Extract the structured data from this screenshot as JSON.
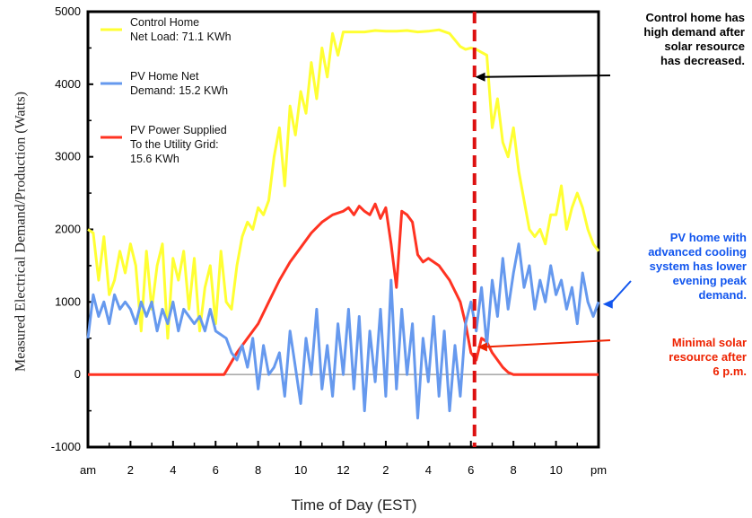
{
  "chart_data": {
    "type": "line",
    "xlabel": "Time of Day (EST)",
    "ylabel": "Measured Electrical Demand/Production (Watts)",
    "ylim": [
      -1000,
      5000
    ],
    "xlim": [
      0,
      24
    ],
    "yticks": [
      "5000",
      "4000",
      "3000",
      "2000",
      "1000",
      "0",
      "-1000"
    ],
    "xticks": [
      "am",
      "2",
      "4",
      "6",
      "8",
      "10",
      "12",
      "2",
      "4",
      "6",
      "8",
      "10",
      "pm"
    ],
    "grid": false,
    "legend_position": "top-left",
    "legend": [
      {
        "lines": [
          "Control Home",
          "Net Load: 71.1 KWh"
        ],
        "color": "#ffff33"
      },
      {
        "lines": [
          "PV Home Net",
          "Demand: 15.2 KWh"
        ],
        "color": "#6699ee"
      },
      {
        "lines": [
          "PV Power Supplied",
          "To the Utility Grid:",
          "15.6 KWh"
        ],
        "color": "#ff3322"
      }
    ],
    "series": [
      {
        "name": "Control Home Net Load: 71.1 KWh",
        "color": "#ffff33",
        "x": [
          0.0,
          0.25,
          0.5,
          0.75,
          1.0,
          1.25,
          1.5,
          1.75,
          2.0,
          2.25,
          2.5,
          2.75,
          3.0,
          3.25,
          3.5,
          3.75,
          4.0,
          4.25,
          4.5,
          4.75,
          5.0,
          5.25,
          5.5,
          5.75,
          6.0,
          6.25,
          6.5,
          6.75,
          7.0,
          7.25,
          7.5,
          7.75,
          8.0,
          8.25,
          8.5,
          8.75,
          9.0,
          9.25,
          9.5,
          9.75,
          10.0,
          10.25,
          10.5,
          10.75,
          11.0,
          11.25,
          11.5,
          11.75,
          12.0,
          12.5,
          13.0,
          13.5,
          14.0,
          14.5,
          15.0,
          15.5,
          16.0,
          16.5,
          17.0,
          17.5,
          17.75,
          18.0,
          18.25,
          18.5,
          18.75,
          19.0,
          19.25,
          19.5,
          19.75,
          20.0,
          20.25,
          20.5,
          20.75,
          21.0,
          21.25,
          21.5,
          21.75,
          22.0,
          22.25,
          22.5,
          22.75,
          23.0,
          23.25,
          23.5,
          23.75,
          24.0
        ],
        "values": [
          2000,
          1950,
          1300,
          1900,
          1100,
          1300,
          1700,
          1400,
          1800,
          1500,
          600,
          1700,
          900,
          1500,
          1800,
          500,
          1600,
          1300,
          1700,
          900,
          1600,
          600,
          1200,
          1500,
          700,
          1700,
          1000,
          900,
          1500,
          1900,
          2100,
          2000,
          2300,
          2200,
          2400,
          3000,
          3400,
          2600,
          3700,
          3300,
          3900,
          3600,
          4300,
          3800,
          4500,
          4100,
          4700,
          4400,
          4720,
          4720,
          4720,
          4740,
          4730,
          4730,
          4740,
          4720,
          4730,
          4750,
          4700,
          4520,
          4480,
          4500,
          4480,
          4440,
          4400,
          3400,
          3800,
          3200,
          3000,
          3400,
          2800,
          2400,
          2000,
          1900,
          2000,
          1800,
          2200,
          2200,
          2600,
          2000,
          2300,
          2500,
          2300,
          2000,
          1800,
          1700
        ]
      },
      {
        "name": "PV Home Net Demand: 15.2 KWh",
        "color": "#6699ee",
        "x": [
          0.0,
          0.25,
          0.5,
          0.75,
          1.0,
          1.25,
          1.5,
          1.75,
          2.0,
          2.25,
          2.5,
          2.75,
          3.0,
          3.25,
          3.5,
          3.75,
          4.0,
          4.25,
          4.5,
          4.75,
          5.0,
          5.25,
          5.5,
          5.75,
          6.0,
          6.25,
          6.5,
          6.75,
          7.0,
          7.25,
          7.5,
          7.75,
          8.0,
          8.25,
          8.5,
          8.75,
          9.0,
          9.25,
          9.5,
          9.75,
          10.0,
          10.25,
          10.5,
          10.75,
          11.0,
          11.25,
          11.5,
          11.75,
          12.0,
          12.25,
          12.5,
          12.75,
          13.0,
          13.25,
          13.5,
          13.75,
          14.0,
          14.25,
          14.5,
          14.75,
          15.0,
          15.25,
          15.5,
          15.75,
          16.0,
          16.25,
          16.5,
          16.75,
          17.0,
          17.25,
          17.5,
          17.75,
          18.0,
          18.25,
          18.5,
          18.75,
          19.0,
          19.25,
          19.5,
          19.75,
          20.0,
          20.25,
          20.5,
          20.75,
          21.0,
          21.25,
          21.5,
          21.75,
          22.0,
          22.25,
          22.5,
          22.75,
          23.0,
          23.25,
          23.5,
          23.75,
          24.0
        ],
        "values": [
          500,
          1100,
          800,
          1000,
          700,
          1100,
          900,
          1000,
          900,
          700,
          1000,
          800,
          1000,
          600,
          900,
          700,
          1000,
          600,
          900,
          800,
          700,
          800,
          600,
          900,
          600,
          550,
          500,
          300,
          200,
          400,
          100,
          500,
          -200,
          400,
          0,
          100,
          300,
          -300,
          600,
          100,
          -400,
          500,
          0,
          900,
          -200,
          400,
          -300,
          700,
          0,
          900,
          -200,
          800,
          -500,
          600,
          -100,
          900,
          -300,
          1300,
          -200,
          900,
          0,
          700,
          -600,
          500,
          -100,
          800,
          -300,
          600,
          -500,
          400,
          -300,
          700,
          1000,
          600,
          1200,
          400,
          1300,
          800,
          1600,
          900,
          1400,
          1800,
          1200,
          1500,
          900,
          1300,
          1000,
          1500,
          1100,
          1300,
          900,
          1200,
          700,
          1400,
          1000,
          800,
          1000
        ]
      },
      {
        "name": "PV Power Supplied To the Utility Grid: 15.6 KWh",
        "color": "#ff3322",
        "x": [
          0.0,
          6.4,
          6.6,
          7.0,
          7.5,
          8.0,
          8.5,
          9.0,
          9.5,
          10.0,
          10.5,
          11.0,
          11.5,
          12.0,
          12.25,
          12.5,
          12.75,
          13.0,
          13.25,
          13.5,
          13.75,
          14.0,
          14.25,
          14.5,
          14.75,
          15.0,
          15.25,
          15.5,
          15.75,
          16.0,
          16.5,
          17.0,
          17.5,
          17.75,
          18.0,
          18.25,
          18.5,
          18.75,
          19.0,
          19.25,
          19.5,
          19.75,
          20.0,
          24.0
        ],
        "values": [
          0,
          0,
          100,
          300,
          500,
          700,
          1000,
          1300,
          1550,
          1750,
          1950,
          2100,
          2200,
          2250,
          2300,
          2200,
          2320,
          2250,
          2200,
          2350,
          2150,
          2300,
          1800,
          1200,
          2250,
          2200,
          2100,
          1650,
          1550,
          1600,
          1500,
          1300,
          1000,
          700,
          300,
          200,
          500,
          450,
          300,
          200,
          100,
          30,
          0,
          0
        ]
      }
    ],
    "vertical_marker": {
      "x": 18.0,
      "color": "#dd1111"
    },
    "annotations": [
      {
        "lines": [
          "Control home has",
          "high demand after",
          "solar resource",
          "has decreased."
        ],
        "color": "#000000",
        "arrow_target": {
          "x": 18.2,
          "y": 4100
        }
      },
      {
        "lines": [
          "PV home with",
          "advanced cooling",
          "system has lower",
          "evening peak",
          "demand."
        ],
        "color": "#1155ee",
        "arrow_target": {
          "x": 24.2,
          "y": 970
        }
      },
      {
        "lines": [
          "Minimal solar",
          "resource after",
          "6 p.m."
        ],
        "color": "#ee2200",
        "arrow_target": {
          "x": 18.3,
          "y": 380
        }
      }
    ]
  }
}
